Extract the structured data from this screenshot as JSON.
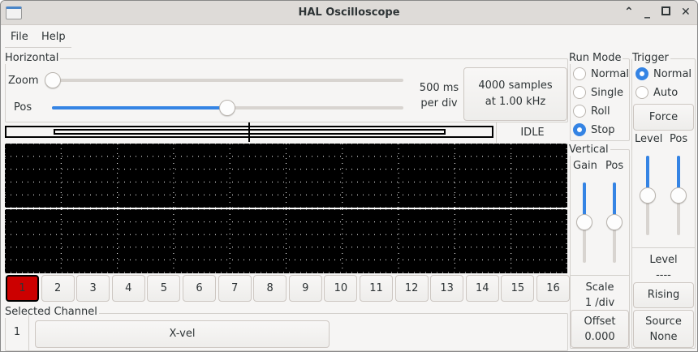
{
  "window": {
    "title": "HAL Oscilloscope"
  },
  "menu": [
    "File",
    "Help"
  ],
  "horizontal": {
    "label": "Horizontal",
    "zoom_label": "Zoom",
    "pos_label": "Pos",
    "zoom_value": 0,
    "pos_value": 0.5,
    "per_div_line1": "500 ms",
    "per_div_line2": "per div",
    "samples_line1": "4000 samples",
    "samples_line2": "at 1.00 kHz",
    "status": "IDLE"
  },
  "run_mode": {
    "label": "Run Mode",
    "options": [
      "Normal",
      "Single",
      "Roll",
      "Stop"
    ],
    "selected": "Stop"
  },
  "trigger": {
    "label": "Trigger",
    "options": [
      "Normal",
      "Auto"
    ],
    "selected": "Normal",
    "force": "Force",
    "level_label": "Level",
    "pos_label": "Pos",
    "level_value": 0.5,
    "pos_value": 0.5,
    "level_title": "Level",
    "level_readout": "----",
    "edge": "Rising",
    "source_line1": "Source",
    "source_line2": "None"
  },
  "vertical": {
    "label": "Vertical",
    "gain_label": "Gain",
    "pos_label": "Pos",
    "gain_value": 0.5,
    "pos_value": 0.5,
    "scale_line1": "Scale",
    "scale_line2": "1 /div",
    "offset_line1": "Offset",
    "offset_line2": "0.000"
  },
  "channels": [
    "1",
    "2",
    "3",
    "4",
    "5",
    "6",
    "7",
    "8",
    "9",
    "10",
    "11",
    "12",
    "13",
    "14",
    "15",
    "16"
  ],
  "active_channel_color": "#cc0000",
  "selected_channel": {
    "label": "Selected Channel",
    "number": "1",
    "name": "X-vel"
  }
}
